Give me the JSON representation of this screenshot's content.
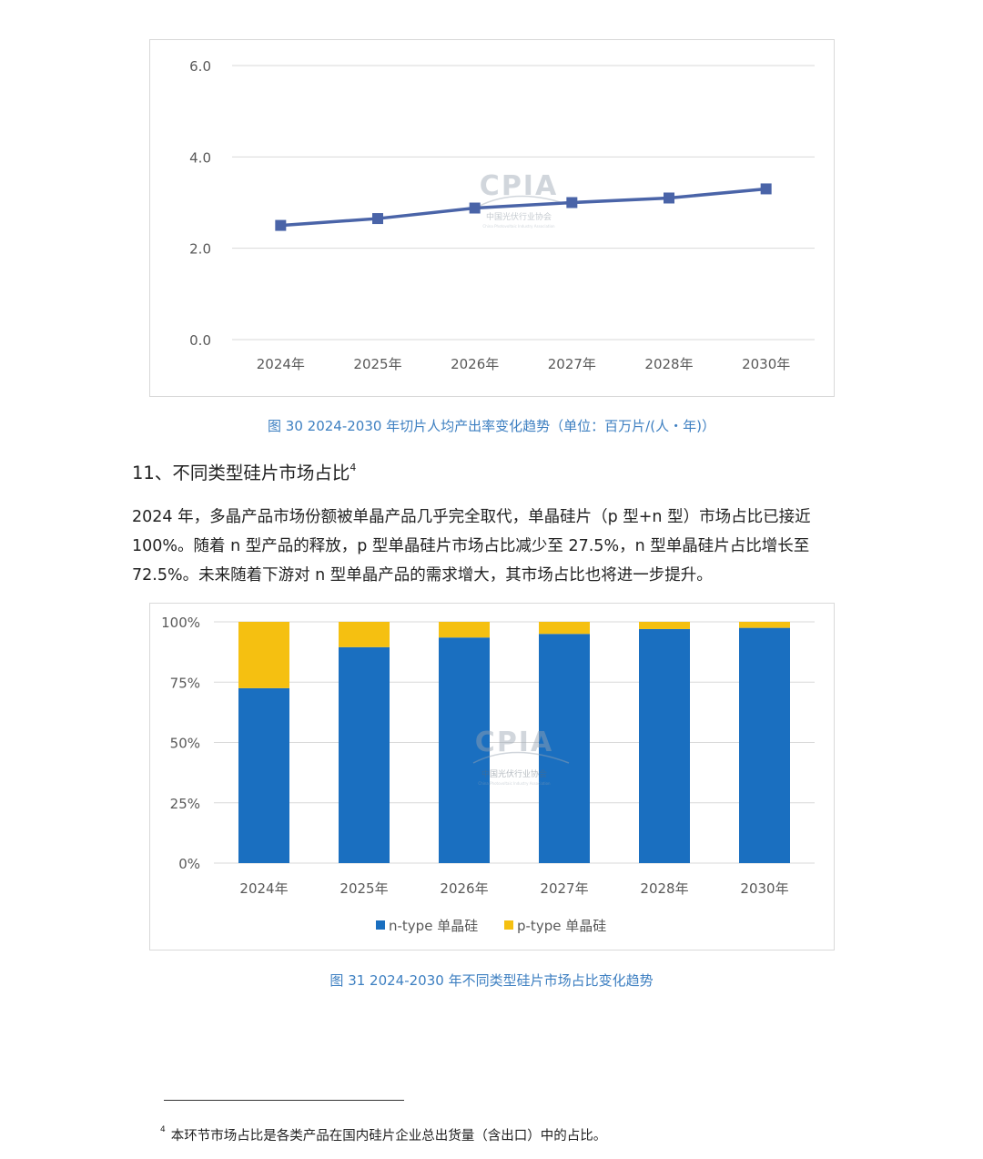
{
  "chart1": {
    "caption": "图 30   2024-2030 年切片人均产出率变化趋势（单位：百万片/(人・年)）",
    "line_color": "#4a64a8",
    "watermark": {
      "title": "CPIA",
      "subtitle": "中国光伏行业协会",
      "tagline": "China Photovoltaic Industry Association"
    }
  },
  "section": {
    "heading": "11、不同类型硅片市场占比",
    "heading_sup": "4",
    "paragraph": "2024 年，多晶产品市场份额被单晶产品几乎完全取代，单晶硅片（p 型+n 型）市场占比已接近 100%。随着 n 型产品的释放，p 型单晶硅片市场占比减少至 27.5%，n 型单晶硅片占比增长至 72.5%。未来随着下游对 n 型单晶产品的需求增大，其市场占比也将进一步提升。"
  },
  "chart2": {
    "caption": "图 31   2024-2030 年不同类型硅片市场占比变化趋势",
    "watermark": {
      "title": "CPIA",
      "subtitle": "中国光伏行业协会",
      "tagline": "China Photovoltaic Industry Association"
    }
  },
  "footnote": {
    "marker": "4",
    "text": "本环节市场占比是各类产品在国内硅片企业总出货量（含出口）中的占比。"
  },
  "chart_data": [
    {
      "type": "line",
      "categories": [
        "2024年",
        "2025年",
        "2026年",
        "2027年",
        "2028年",
        "2030年"
      ],
      "series": [
        {
          "values": [
            2.5,
            2.65,
            2.88,
            3.0,
            3.1,
            3.3
          ],
          "color": "#4a64a8"
        }
      ],
      "ylim": [
        0,
        6
      ],
      "yticks": [
        "0.0",
        "2.0",
        "4.0",
        "6.0"
      ],
      "ytick_values": [
        0,
        2,
        4,
        6
      ],
      "grid": true,
      "legend": "none"
    },
    {
      "type": "bar",
      "stacked": true,
      "categories": [
        "2024年",
        "2025年",
        "2026年",
        "2027年",
        "2028年",
        "2030年"
      ],
      "series": [
        {
          "name": "n-type 单晶硅",
          "values": [
            72.5,
            89.5,
            93.5,
            95.0,
            97.0,
            97.5
          ],
          "color": "#1a6fc0"
        },
        {
          "name": "p-type 单晶硅",
          "values": [
            27.5,
            10.5,
            6.5,
            5.0,
            3.0,
            2.5
          ],
          "color": "#f5c011"
        }
      ],
      "ylim": [
        0,
        100
      ],
      "yticks": [
        "0%",
        "25%",
        "50%",
        "75%",
        "100%"
      ],
      "ytick_values": [
        0,
        25,
        50,
        75,
        100
      ],
      "grid": true,
      "legend": "bottom"
    }
  ]
}
